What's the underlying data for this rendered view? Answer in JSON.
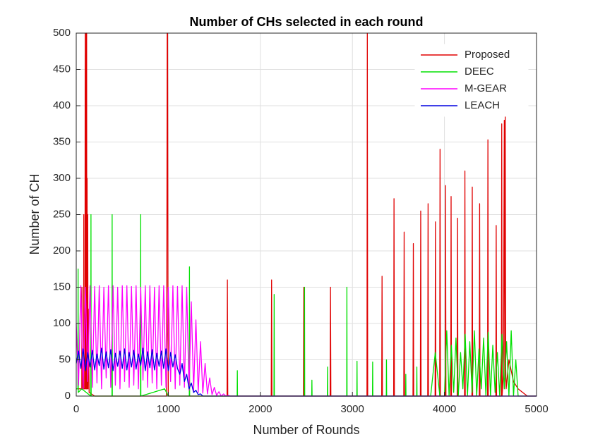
{
  "chart_data": {
    "type": "line",
    "title": "Number of CHs selected in each round",
    "xlabel": "Number of Rounds",
    "ylabel": "Number of CH",
    "xlim": [
      0,
      5000
    ],
    "xticks": [
      0,
      1000,
      2000,
      3000,
      4000,
      5000
    ],
    "ylim": [
      0,
      500
    ],
    "yticks": [
      0,
      50,
      100,
      150,
      200,
      250,
      300,
      350,
      400,
      450,
      500
    ],
    "grid": true,
    "legend": "top-right",
    "series": [
      {
        "name": "Proposed",
        "color": "#e00000",
        "x": [
          0,
          50,
          60,
          62,
          64,
          80,
          82,
          84,
          95,
          97,
          100,
          103,
          105,
          108,
          110,
          113,
          115,
          118,
          120,
          125,
          128,
          131,
          140,
          200,
          980,
          984,
          988,
          992,
          996,
          1000,
          1100,
          1638,
          1642,
          1646,
          2118,
          2122,
          2126,
          2468,
          2472,
          2476,
          2758,
          2762,
          2766,
          3158,
          3162,
          3166,
          3318,
          3322,
          3326,
          3448,
          3452,
          3456,
          3558,
          3562,
          3566,
          3658,
          3662,
          3666,
          3738,
          3742,
          3746,
          3818,
          3822,
          3826,
          3898,
          3902,
          3906,
          3948,
          3952,
          3956,
          4008,
          4012,
          4016,
          4068,
          4072,
          4076,
          4138,
          4142,
          4146,
          4218,
          4222,
          4226,
          4298,
          4302,
          4306,
          4378,
          4382,
          4386,
          4468,
          4472,
          4476,
          4558,
          4562,
          4566,
          4618,
          4622,
          4626,
          4640,
          4650,
          4655,
          4660,
          4665,
          4670,
          4700,
          4750,
          4800,
          4900,
          5000
        ],
        "values": [
          10,
          10,
          10,
          150,
          10,
          10,
          250,
          10,
          10,
          500,
          20,
          420,
          10,
          500,
          10,
          500,
          10,
          300,
          10,
          250,
          10,
          120,
          5,
          0,
          0,
          165,
          500,
          500,
          150,
          0,
          0,
          0,
          160,
          0,
          0,
          160,
          0,
          0,
          150,
          0,
          0,
          150,
          0,
          0,
          500,
          0,
          0,
          165,
          0,
          0,
          272,
          0,
          0,
          226,
          0,
          0,
          210,
          0,
          0,
          255,
          0,
          0,
          265,
          0,
          0,
          240,
          0,
          0,
          340,
          0,
          0,
          290,
          0,
          0,
          275,
          0,
          0,
          245,
          0,
          0,
          310,
          0,
          0,
          288,
          0,
          0,
          265,
          0,
          0,
          353,
          0,
          0,
          235,
          0,
          0,
          375,
          0,
          30,
          380,
          20,
          385,
          40,
          10,
          50,
          20,
          10,
          0,
          0
        ]
      },
      {
        "name": "DEEC",
        "color": "#00e000",
        "x": [
          0,
          18,
          20,
          22,
          60,
          158,
          160,
          162,
          388,
          390,
          392,
          698,
          700,
          702,
          960,
          1000,
          1228,
          1230,
          1232,
          1748,
          1750,
          1752,
          2148,
          2150,
          2152,
          2478,
          2480,
          2482,
          2558,
          2560,
          2562,
          2728,
          2730,
          2732,
          2938,
          2940,
          2942,
          3048,
          3050,
          3052,
          3218,
          3220,
          3222,
          3368,
          3370,
          3372,
          3578,
          3580,
          3582,
          3698,
          3700,
          3702,
          3850,
          3900,
          3950,
          4000,
          4025,
          4050,
          4075,
          4100,
          4125,
          4150,
          4175,
          4200,
          4225,
          4250,
          4275,
          4300,
          4325,
          4350,
          4375,
          4400,
          4425,
          4450,
          4475,
          4500,
          4525,
          4550,
          4575,
          4600,
          4625,
          4650,
          4675,
          4700,
          4725,
          4750,
          4775,
          4800,
          4850,
          5000
        ],
        "values": [
          10,
          10,
          175,
          5,
          10,
          0,
          250,
          0,
          0,
          250,
          0,
          0,
          250,
          0,
          10,
          0,
          0,
          178,
          0,
          0,
          35,
          0,
          0,
          140,
          0,
          0,
          150,
          0,
          0,
          22,
          0,
          0,
          40,
          0,
          0,
          150,
          0,
          0,
          48,
          0,
          0,
          47,
          0,
          0,
          50,
          0,
          0,
          30,
          0,
          0,
          40,
          0,
          0,
          60,
          0,
          0,
          90,
          0,
          70,
          5,
          80,
          0,
          60,
          10,
          85,
          0,
          75,
          5,
          90,
          0,
          65,
          10,
          80,
          0,
          88,
          0,
          70,
          5,
          60,
          0,
          85,
          10,
          75,
          0,
          90,
          0,
          50,
          0,
          0,
          0
        ]
      },
      {
        "name": "M-GEAR",
        "color": "#ff00ff",
        "x": [
          0,
          25,
          50,
          75,
          100,
          125,
          150,
          175,
          200,
          225,
          250,
          275,
          300,
          325,
          350,
          375,
          400,
          425,
          450,
          475,
          500,
          525,
          550,
          575,
          600,
          625,
          650,
          675,
          700,
          725,
          750,
          775,
          800,
          825,
          850,
          875,
          900,
          925,
          950,
          975,
          1000,
          1025,
          1050,
          1075,
          1100,
          1125,
          1150,
          1175,
          1200,
          1225,
          1250,
          1275,
          1300,
          1325,
          1350,
          1375,
          1400,
          1425,
          1450,
          1475,
          1500,
          1525,
          1550,
          1575,
          1600,
          1625,
          1650,
          1675,
          1700,
          5000
        ],
        "values": [
          100,
          15,
          152,
          10,
          150,
          20,
          152,
          12,
          151,
          18,
          152,
          10,
          150,
          25,
          152,
          12,
          152,
          15,
          150,
          10,
          152,
          20,
          152,
          12,
          151,
          15,
          152,
          10,
          150,
          22,
          152,
          12,
          152,
          18,
          150,
          10,
          152,
          15,
          152,
          12,
          150,
          20,
          152,
          10,
          151,
          15,
          152,
          12,
          150,
          8,
          130,
          6,
          105,
          5,
          75,
          4,
          45,
          3,
          25,
          2,
          12,
          1,
          6,
          0,
          3,
          0,
          1,
          0,
          0,
          0
        ]
      },
      {
        "name": "LEACH",
        "color": "#0000e0",
        "x": [
          0,
          25,
          50,
          75,
          100,
          125,
          150,
          175,
          200,
          225,
          250,
          275,
          300,
          325,
          350,
          375,
          400,
          425,
          450,
          475,
          500,
          525,
          550,
          575,
          600,
          625,
          650,
          675,
          700,
          725,
          750,
          775,
          800,
          825,
          850,
          875,
          900,
          925,
          950,
          975,
          1000,
          1025,
          1050,
          1075,
          1100,
          1125,
          1150,
          1175,
          1200,
          1225,
          1250,
          1275,
          1300,
          1325,
          1350,
          1375,
          1400,
          5000
        ],
        "values": [
          45,
          62,
          38,
          65,
          35,
          60,
          40,
          63,
          36,
          58,
          42,
          66,
          37,
          61,
          39,
          64,
          35,
          59,
          41,
          62,
          38,
          65,
          36,
          60,
          40,
          63,
          37,
          58,
          42,
          66,
          35,
          61,
          39,
          64,
          36,
          59,
          41,
          62,
          38,
          65,
          35,
          60,
          40,
          57,
          38,
          30,
          45,
          20,
          30,
          10,
          18,
          5,
          8,
          2,
          3,
          0,
          0,
          0
        ]
      }
    ]
  }
}
